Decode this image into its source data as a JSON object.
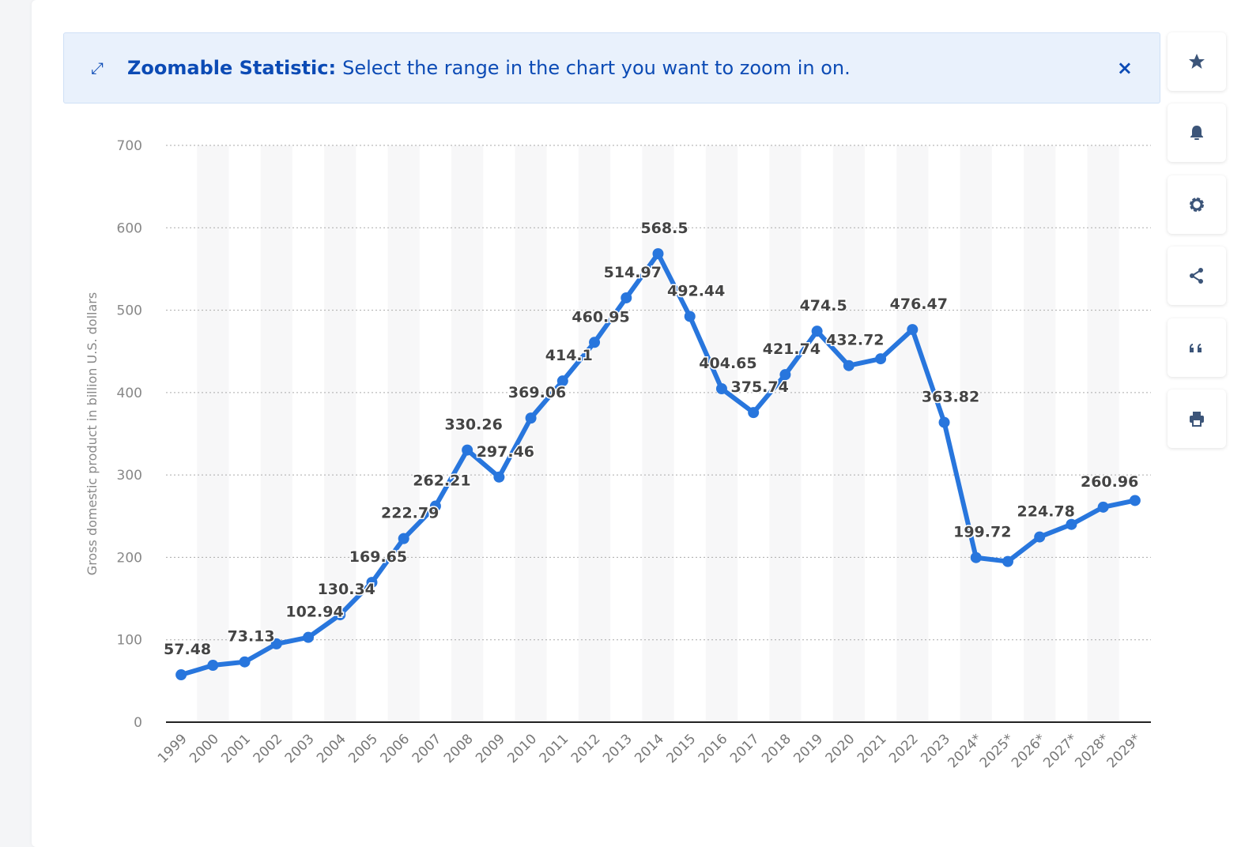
{
  "banner": {
    "icon": "expand-icon",
    "title": "Zoomable Statistic:",
    "text": "Select the range in the chart you want to zoom in on.",
    "close": "×"
  },
  "sidebar": [
    {
      "icon": "star-icon"
    },
    {
      "icon": "bell-icon"
    },
    {
      "icon": "gear-icon"
    },
    {
      "icon": "share-icon"
    },
    {
      "icon": "quote-icon"
    },
    {
      "icon": "print-icon"
    }
  ],
  "colors": {
    "line": "#2876dd",
    "banner_bg": "#e9f1fc",
    "banner_text": "#0c4bb5"
  },
  "chart_data": {
    "type": "line",
    "ylabel": "Gross domestic product in billion U.S. dollars",
    "ylim": [
      0,
      700
    ],
    "yticks": [
      0,
      100,
      200,
      300,
      400,
      500,
      600,
      700
    ],
    "grid": true,
    "categories": [
      "1999",
      "2000",
      "2001",
      "2002",
      "2003",
      "2004",
      "2005",
      "2006",
      "2007",
      "2008",
      "2009",
      "2010",
      "2011",
      "2012",
      "2013",
      "2014",
      "2015",
      "2016",
      "2017",
      "2018",
      "2019",
      "2020",
      "2021",
      "2022",
      "2023",
      "2024*",
      "2025*",
      "2026*",
      "2027*",
      "2028*",
      "2029*"
    ],
    "values": [
      57.48,
      69,
      73.13,
      95,
      102.94,
      130.34,
      169.65,
      222.79,
      262.21,
      330.26,
      297.46,
      369.06,
      414.1,
      460.95,
      514.97,
      568.5,
      492.44,
      404.65,
      375.74,
      421.74,
      474.5,
      432.72,
      441,
      476.47,
      363.82,
      199.72,
      195,
      224.78,
      240,
      260.96,
      269
    ],
    "labels": [
      "57.48",
      null,
      "73.13",
      null,
      "102.94",
      "130.34",
      "169.65",
      "222.79",
      "262.21",
      "330.26",
      "297.46",
      "369.06",
      "414.1",
      "460.95",
      "514.97",
      "568.5",
      "492.44",
      "404.65",
      "375.74",
      "421.74",
      "474.5",
      "432.72",
      null,
      "476.47",
      "363.82",
      "199.72",
      null,
      "224.78",
      null,
      "260.96",
      null
    ]
  }
}
